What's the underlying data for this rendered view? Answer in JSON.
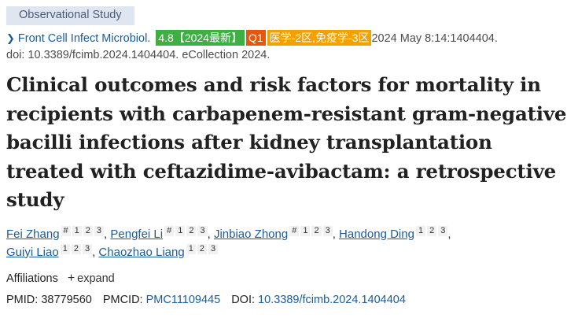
{
  "publication_type": "Observational Study",
  "citation": {
    "journal": "Front Cell Infect Microbiol.",
    "badge_if": "4.8【2024最新】",
    "badge_q": "Q1",
    "badge_zone": "医学-2区,免疫学-3区",
    "date_info": "2024 May 8:14:1404404.",
    "doi_line": "doi: 10.3389/fcimb.2024.1404404. eCollection 2024."
  },
  "title": "Clinical outcomes and risk factors for mortality in recipients with carbapenem-resistant gram-negative bacilli infections after kidney transplantation treated with ceftazidime-avibactam: a retrospective study",
  "authors": [
    {
      "name": "Fei Zhang",
      "marks": [
        "#",
        "1",
        "2",
        "3"
      ]
    },
    {
      "name": "Pengfei Li",
      "marks": [
        "#",
        "1",
        "2",
        "3"
      ]
    },
    {
      "name": "Jinbiao Zhong",
      "marks": [
        "#",
        "1",
        "2",
        "3"
      ]
    },
    {
      "name": "Handong Ding",
      "marks": [
        "1",
        "2",
        "3"
      ]
    },
    {
      "name": "Guiyi Liao",
      "marks": [
        "1",
        "2",
        "3"
      ]
    },
    {
      "name": "Chaozhao Liang",
      "marks": [
        "1",
        "2",
        "3"
      ]
    }
  ],
  "affiliations": {
    "label": "Affiliations",
    "expand_icon": "plus-icon",
    "expand_label": "expand"
  },
  "identifiers": {
    "pmid_label": "PMID:",
    "pmid": "38779560",
    "pmcid_label": "PMCID:",
    "pmcid": "PMC11109445",
    "doi_label": "DOI:",
    "doi": "10.3389/fcimb.2024.1404404"
  },
  "colors": {
    "link": "#1a5c9a",
    "badge_if": "#3db044",
    "badge_q": "#e8560c",
    "badge_zone": "#f2a100",
    "pub_type_bg": "#dfe6f0"
  }
}
